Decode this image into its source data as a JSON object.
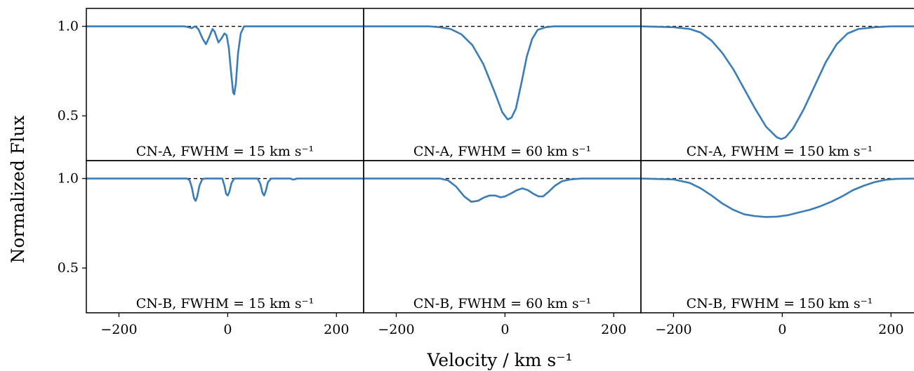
{
  "chart_data": [
    {
      "type": "line",
      "row": 0,
      "col": 0,
      "label": "CN-A, FWHM = 15 km s⁻¹",
      "xlim": [
        -260,
        250
      ],
      "ylim": [
        0.25,
        1.1
      ],
      "yticks": [
        0.5,
        1.0
      ],
      "ytick_labels": [
        "0.5",
        "1.0"
      ],
      "continuum": 1.0,
      "series": [
        {
          "color": "#3a7cb8",
          "points": [
            [
              -260,
              1
            ],
            [
              -80,
              1
            ],
            [
              -72,
              0.995
            ],
            [
              -66,
              0.99
            ],
            [
              -60,
              1
            ],
            [
              -54,
              0.985
            ],
            [
              -46,
              0.93
            ],
            [
              -40,
              0.9
            ],
            [
              -34,
              0.94
            ],
            [
              -28,
              0.985
            ],
            [
              -24,
              0.97
            ],
            [
              -17,
              0.91
            ],
            [
              -12,
              0.93
            ],
            [
              -6,
              0.96
            ],
            [
              -2,
              0.95
            ],
            [
              2,
              0.88
            ],
            [
              6,
              0.75
            ],
            [
              10,
              0.63
            ],
            [
              12,
              0.62
            ],
            [
              15,
              0.68
            ],
            [
              19,
              0.85
            ],
            [
              24,
              0.96
            ],
            [
              30,
              1
            ],
            [
              250,
              1
            ]
          ]
        }
      ]
    },
    {
      "type": "line",
      "row": 0,
      "col": 1,
      "label": "CN-A, FWHM = 60 km s⁻¹",
      "xlim": [
        -260,
        250
      ],
      "ylim": [
        0.25,
        1.1
      ],
      "continuum": 1.0,
      "series": [
        {
          "color": "#3a7cb8",
          "points": [
            [
              -260,
              1
            ],
            [
              -140,
              1
            ],
            [
              -120,
              0.995
            ],
            [
              -100,
              0.985
            ],
            [
              -80,
              0.955
            ],
            [
              -60,
              0.895
            ],
            [
              -40,
              0.79
            ],
            [
              -20,
              0.64
            ],
            [
              -5,
              0.52
            ],
            [
              5,
              0.48
            ],
            [
              12,
              0.49
            ],
            [
              20,
              0.54
            ],
            [
              30,
              0.68
            ],
            [
              40,
              0.83
            ],
            [
              50,
              0.93
            ],
            [
              60,
              0.98
            ],
            [
              75,
              0.995
            ],
            [
              90,
              1
            ],
            [
              250,
              1
            ]
          ]
        }
      ]
    },
    {
      "type": "line",
      "row": 0,
      "col": 2,
      "label": "CN-A, FWHM = 150 km s⁻¹",
      "xlim": [
        -260,
        250
      ],
      "ylim": [
        0.25,
        1.1
      ],
      "continuum": 1.0,
      "series": [
        {
          "color": "#3a7cb8",
          "points": [
            [
              -260,
              1
            ],
            [
              -200,
              0.995
            ],
            [
              -170,
              0.985
            ],
            [
              -150,
              0.965
            ],
            [
              -130,
              0.92
            ],
            [
              -110,
              0.85
            ],
            [
              -90,
              0.76
            ],
            [
              -70,
              0.65
            ],
            [
              -50,
              0.54
            ],
            [
              -30,
              0.44
            ],
            [
              -10,
              0.38
            ],
            [
              -2,
              0.37
            ],
            [
              6,
              0.38
            ],
            [
              20,
              0.43
            ],
            [
              40,
              0.54
            ],
            [
              60,
              0.67
            ],
            [
              80,
              0.8
            ],
            [
              100,
              0.9
            ],
            [
              120,
              0.96
            ],
            [
              140,
              0.985
            ],
            [
              170,
              0.995
            ],
            [
              200,
              1
            ],
            [
              250,
              1
            ]
          ]
        }
      ]
    },
    {
      "type": "line",
      "row": 1,
      "col": 0,
      "label": "CN-B, FWHM = 15 km s⁻¹",
      "xlim": [
        -260,
        250
      ],
      "ylim": [
        0.25,
        1.1
      ],
      "yticks": [
        0.5,
        1.0
      ],
      "ytick_labels": [
        "0.5",
        "1.0"
      ],
      "continuum": 1.0,
      "series": [
        {
          "color": "#3a7cb8",
          "points": [
            [
              -260,
              1
            ],
            [
              -75,
              1
            ],
            [
              -70,
              0.99
            ],
            [
              -66,
              0.95
            ],
            [
              -62,
              0.89
            ],
            [
              -59,
              0.875
            ],
            [
              -56,
              0.9
            ],
            [
              -52,
              0.96
            ],
            [
              -47,
              0.995
            ],
            [
              -42,
              1
            ],
            [
              -10,
              1
            ],
            [
              -6,
              0.96
            ],
            [
              -3,
              0.915
            ],
            [
              0,
              0.905
            ],
            [
              3,
              0.925
            ],
            [
              7,
              0.975
            ],
            [
              12,
              1
            ],
            [
              55,
              1
            ],
            [
              60,
              0.97
            ],
            [
              64,
              0.92
            ],
            [
              67,
              0.905
            ],
            [
              70,
              0.93
            ],
            [
              74,
              0.98
            ],
            [
              80,
              1
            ],
            [
              115,
              1
            ],
            [
              119,
              0.995
            ],
            [
              123,
              0.995
            ],
            [
              128,
              1
            ],
            [
              250,
              1
            ]
          ]
        }
      ]
    },
    {
      "type": "line",
      "row": 1,
      "col": 1,
      "label": "CN-B, FWHM = 60 km s⁻¹",
      "xlim": [
        -260,
        250
      ],
      "ylim": [
        0.25,
        1.1
      ],
      "continuum": 1.0,
      "series": [
        {
          "color": "#3a7cb8",
          "points": [
            [
              -260,
              1
            ],
            [
              -120,
              1
            ],
            [
              -105,
              0.99
            ],
            [
              -90,
              0.955
            ],
            [
              -75,
              0.9
            ],
            [
              -62,
              0.87
            ],
            [
              -50,
              0.875
            ],
            [
              -38,
              0.895
            ],
            [
              -28,
              0.905
            ],
            [
              -18,
              0.905
            ],
            [
              -8,
              0.895
            ],
            [
              0,
              0.9
            ],
            [
              10,
              0.915
            ],
            [
              22,
              0.935
            ],
            [
              32,
              0.945
            ],
            [
              42,
              0.935
            ],
            [
              52,
              0.915
            ],
            [
              62,
              0.9
            ],
            [
              70,
              0.9
            ],
            [
              80,
              0.925
            ],
            [
              92,
              0.96
            ],
            [
              105,
              0.985
            ],
            [
              120,
              0.995
            ],
            [
              140,
              1
            ],
            [
              250,
              1
            ]
          ]
        }
      ]
    },
    {
      "type": "line",
      "row": 1,
      "col": 2,
      "label": "CN-B, FWHM = 150 km s⁻¹",
      "xlim": [
        -260,
        250
      ],
      "ylim": [
        0.25,
        1.1
      ],
      "continuum": 1.0,
      "series": [
        {
          "color": "#3a7cb8",
          "points": [
            [
              -260,
              1
            ],
            [
              -200,
              0.995
            ],
            [
              -170,
              0.975
            ],
            [
              -150,
              0.945
            ],
            [
              -130,
              0.905
            ],
            [
              -110,
              0.86
            ],
            [
              -90,
              0.825
            ],
            [
              -70,
              0.8
            ],
            [
              -50,
              0.79
            ],
            [
              -30,
              0.785
            ],
            [
              -10,
              0.787
            ],
            [
              10,
              0.795
            ],
            [
              30,
              0.81
            ],
            [
              50,
              0.825
            ],
            [
              70,
              0.845
            ],
            [
              90,
              0.87
            ],
            [
              110,
              0.9
            ],
            [
              130,
              0.935
            ],
            [
              150,
              0.96
            ],
            [
              170,
              0.98
            ],
            [
              190,
              0.993
            ],
            [
              210,
              0.998
            ],
            [
              250,
              1
            ]
          ]
        }
      ]
    }
  ],
  "x_ticks": [
    -200,
    0,
    200
  ],
  "x_tick_labels": [
    "−200",
    "0",
    "200"
  ],
  "x_axis_label": "Velocity / km s⁻¹",
  "y_axis_label": "Normalized Flux",
  "colors": {
    "line": "#3a7cb8",
    "continuum": "#000000"
  }
}
